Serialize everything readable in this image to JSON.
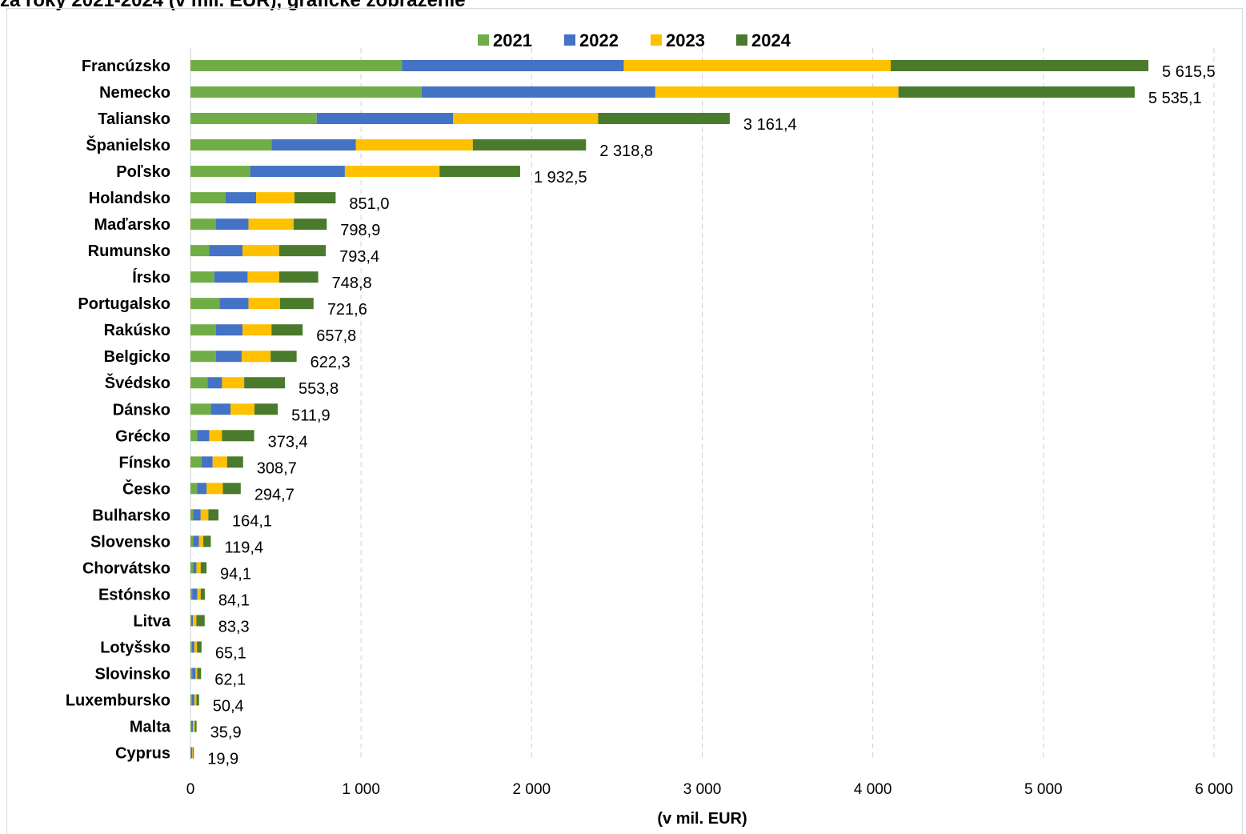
{
  "header": {
    "title_fragment": "za roky 2021-2024 (v mil. EUR), grafické zobrazenie"
  },
  "chart_data": {
    "type": "bar",
    "orientation": "horizontal",
    "stacked": true,
    "title": "",
    "xlabel": "(v mil. EUR)",
    "ylabel": "",
    "xlim": [
      0,
      6000
    ],
    "xticks": [
      0,
      1000,
      2000,
      3000,
      4000,
      5000,
      6000
    ],
    "xtick_labels": [
      "0",
      "1 000",
      "2 000",
      "3 000",
      "4 000",
      "5 000",
      "6 000"
    ],
    "grid": "vertical dashed",
    "legend_position": "top",
    "categories": [
      "Francúzsko",
      "Nemecko",
      "Taliansko",
      "Španielsko",
      "Poľsko",
      "Holandsko",
      "Maďarsko",
      "Rumunsko",
      "Írsko",
      "Portugalsko",
      "Rakúsko",
      "Belgicko",
      "Švédsko",
      "Dánsko",
      "Grécko",
      "Fínsko",
      "Česko",
      "Bulharsko",
      "Slovensko",
      "Chorvátsko",
      "Estónsko",
      "Litva",
      "Lotyšsko",
      "Slovinsko",
      "Luxembursko",
      "Malta",
      "Cyprus"
    ],
    "series": [
      {
        "name": "2021",
        "color": "#70ad47",
        "values": [
          1240,
          1355,
          740,
          475,
          350,
          205,
          150,
          110,
          140,
          170,
          150,
          150,
          100,
          120,
          40,
          65,
          40,
          15,
          15,
          15,
          10,
          5,
          8,
          10,
          8,
          5,
          3
        ]
      },
      {
        "name": "2022",
        "color": "#4472c4",
        "values": [
          1300,
          1370,
          800,
          495,
          555,
          180,
          190,
          195,
          195,
          170,
          155,
          150,
          85,
          115,
          70,
          65,
          55,
          45,
          35,
          20,
          30,
          10,
          15,
          20,
          15,
          10,
          8
        ]
      },
      {
        "name": "2023",
        "color": "#ffc000",
        "values": [
          1565,
          1425,
          850,
          685,
          555,
          225,
          265,
          215,
          185,
          185,
          170,
          170,
          130,
          140,
          75,
          85,
          95,
          45,
          25,
          25,
          20,
          20,
          15,
          10,
          12,
          10,
          4
        ]
      },
      {
        "name": "2024",
        "color": "#4a7a2b",
        "values": [
          1510.5,
          1385.1,
          771.4,
          663.8,
          472.5,
          241,
          193.9,
          273.4,
          228.8,
          196.6,
          182.8,
          152.3,
          238.8,
          136.9,
          188.4,
          93.7,
          104.7,
          59.1,
          44.4,
          34.1,
          24.1,
          48.3,
          27.1,
          22.1,
          15.4,
          10.9,
          4.9
        ]
      }
    ],
    "totals": [
      5615.5,
      5535.1,
      3161.4,
      2318.8,
      1932.5,
      851.0,
      798.9,
      793.4,
      748.8,
      721.6,
      657.8,
      622.3,
      553.8,
      511.9,
      373.4,
      308.7,
      294.7,
      164.1,
      119.4,
      94.1,
      84.1,
      83.3,
      65.1,
      62.1,
      50.4,
      35.9,
      19.9
    ],
    "total_labels": [
      "5 615,5",
      "5 535,1",
      "3 161,4",
      "2 318,8",
      "1 932,5",
      "851,0",
      "798,9",
      "793,4",
      "748,8",
      "721,6",
      "657,8",
      "622,3",
      "553,8",
      "511,9",
      "373,4",
      "308,7",
      "294,7",
      "164,1",
      "119,4",
      "94,1",
      "84,1",
      "83,3",
      "65,1",
      "62,1",
      "50,4",
      "35,9",
      "19,9"
    ]
  }
}
